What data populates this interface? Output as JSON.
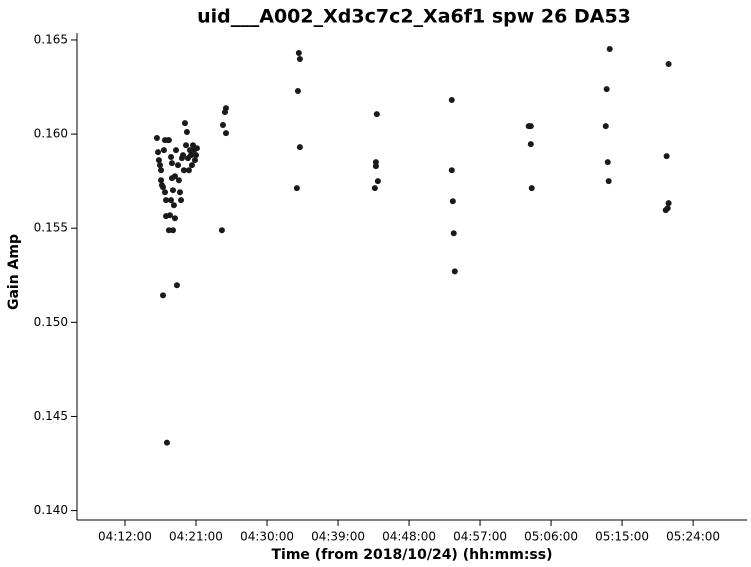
{
  "chart_data": {
    "type": "scatter",
    "title": "uid___A002_Xd3c7c2_Xa6f1 spw 26 DA53",
    "x_label": "Time (from 2018/10/24) (hh:mm:ss)",
    "y_label": "Gain Amp",
    "color": "#1a1a1a",
    "x": [
      15363,
      15371,
      15378,
      15386,
      15394,
      15401,
      15409,
      15394,
      15409,
      15416,
      15424,
      15424,
      15432,
      15439,
      15447,
      15454,
      15462,
      15470,
      15477,
      15485,
      15492,
      15500,
      15508,
      15515,
      15523,
      15530,
      15538,
      15546,
      15553,
      15561,
      15568,
      15576,
      15584,
      15591,
      15599,
      15606,
      15614,
      15622,
      15629,
      15637,
      15644,
      15652,
      15660,
      15667,
      15454,
      15470,
      15500,
      15432,
      15485,
      15477,
      15857,
      15865,
      15880,
      15888,
      15888,
      16427,
      16435,
      16442,
      16450,
      16450,
      17020,
      17028,
      17028,
      17035,
      17043,
      17605,
      17605,
      17613,
      17620,
      17628,
      18190,
      18198,
      18206,
      18206,
      18213,
      18776,
      18783,
      18791,
      18798,
      18806,
      19232,
      19239,
      19247,
      19254,
      19254
    ],
    "values": [
      0.15979,
      0.15904,
      0.15862,
      0.15835,
      0.15808,
      0.15729,
      0.15143,
      0.15755,
      0.15718,
      0.15915,
      0.15968,
      0.15691,
      0.15649,
      0.14361,
      0.15968,
      0.15489,
      0.15569,
      0.15649,
      0.15766,
      0.15702,
      0.15622,
      0.15553,
      0.15915,
      0.15197,
      0.15835,
      0.15755,
      0.15691,
      0.15649,
      0.15872,
      0.15888,
      0.15808,
      0.16058,
      0.15941,
      0.16011,
      0.15872,
      0.15808,
      0.15915,
      0.15888,
      0.15835,
      0.15941,
      0.15915,
      0.15862,
      0.15888,
      0.15925,
      0.15968,
      0.15878,
      0.15776,
      0.15564,
      0.15489,
      0.15846,
      0.15489,
      0.16048,
      0.16117,
      0.16138,
      0.16005,
      0.15713,
      0.16229,
      0.16431,
      0.16399,
      0.15931,
      0.15713,
      0.1583,
      0.15851,
      0.16106,
      0.1575,
      0.16181,
      0.15808,
      0.15643,
      0.15473,
      0.15271,
      0.16042,
      0.16042,
      0.16042,
      0.15947,
      0.15713,
      0.16042,
      0.16239,
      0.15851,
      0.1575,
      0.16452,
      0.15596,
      0.15883,
      0.15606,
      0.15633,
      0.16372
    ],
    "xlim": [
      14755,
      19850
    ],
    "xticks": [
      {
        "value": 15120,
        "label": "04:12:00"
      },
      {
        "value": 15660,
        "label": "04:21:00"
      },
      {
        "value": 16200,
        "label": "04:30:00"
      },
      {
        "value": 16740,
        "label": "04:39:00"
      },
      {
        "value": 17280,
        "label": "04:48:00"
      },
      {
        "value": 17820,
        "label": "04:57:00"
      },
      {
        "value": 18360,
        "label": "05:06:00"
      },
      {
        "value": 18900,
        "label": "05:15:00"
      },
      {
        "value": 19440,
        "label": "05:24:00"
      }
    ],
    "ylim": [
      0.1395,
      0.16537
    ],
    "yticks": [
      {
        "value": 0.14,
        "label": "0.140"
      },
      {
        "value": 0.145,
        "label": "0.145"
      },
      {
        "value": 0.15,
        "label": "0.150"
      },
      {
        "value": 0.155,
        "label": "0.155"
      },
      {
        "value": 0.16,
        "label": "0.160"
      },
      {
        "value": 0.165,
        "label": "0.165"
      }
    ]
  }
}
